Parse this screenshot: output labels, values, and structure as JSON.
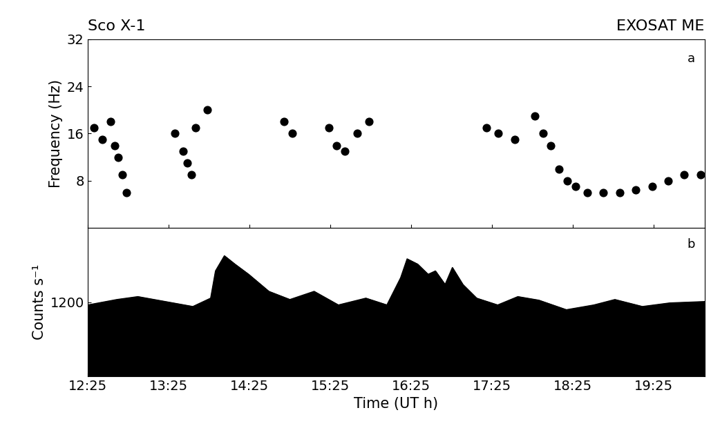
{
  "chart_data": [
    {
      "type": "scatter",
      "title": "Sco X-1",
      "subtitle": "EXOSAT ME",
      "y_label": "Frequency (Hz)",
      "annotations": [
        "a"
      ],
      "x": [
        12.5,
        12.6,
        12.7,
        12.75,
        12.8,
        12.85,
        12.9,
        13.5,
        13.6,
        13.65,
        13.7,
        13.75,
        13.9,
        14.85,
        14.95,
        15.4,
        15.5,
        15.6,
        15.75,
        15.9,
        17.35,
        17.5,
        17.7,
        17.95,
        18.05,
        18.15,
        18.25,
        18.35,
        18.45,
        18.6,
        18.8,
        19.0,
        19.2,
        19.4,
        19.6,
        19.8,
        20.0
      ],
      "values": [
        17,
        15,
        18,
        14,
        12,
        9,
        6,
        16,
        13,
        11,
        9,
        17,
        20,
        18,
        16,
        17,
        14,
        13,
        16,
        18,
        17,
        16,
        15,
        19,
        16,
        14,
        10,
        8,
        7,
        6,
        6,
        6,
        6.5,
        7,
        8,
        9,
        9
      ],
      "color": "#000000",
      "marker": "o",
      "xlim": [
        12.4167,
        20.05
      ],
      "xticks": [
        {
          "value": 12.4167,
          "label": "12:25"
        },
        {
          "value": 13.4167,
          "label": "13:25"
        },
        {
          "value": 14.4167,
          "label": "14:25"
        },
        {
          "value": 15.4167,
          "label": "15:25"
        },
        {
          "value": 16.4167,
          "label": "16:25"
        },
        {
          "value": 17.4167,
          "label": "17:25"
        },
        {
          "value": 18.4167,
          "label": "18:25"
        },
        {
          "value": 19.4167,
          "label": "19:25"
        }
      ],
      "ylim": [
        0,
        32
      ],
      "yticks": [
        8,
        16,
        24,
        32
      ],
      "tick_labels": "y"
    },
    {
      "type": "area",
      "x_label": "Time (UT h)",
      "y_label": "Counts s⁻¹",
      "annotations": [
        "b"
      ],
      "x": [
        12.42,
        12.78,
        13.04,
        13.38,
        13.72,
        13.94,
        14.0,
        14.11,
        14.24,
        14.41,
        14.66,
        14.92,
        15.22,
        15.52,
        15.86,
        16.12,
        16.29,
        16.37,
        16.5,
        16.63,
        16.72,
        16.84,
        16.93,
        17.06,
        17.23,
        17.49,
        17.74,
        18.0,
        18.34,
        18.68,
        18.94,
        19.28,
        19.62,
        20.05
      ],
      "values": [
        1155,
        1243,
        1290,
        1210,
        1130,
        1265,
        1705,
        1950,
        1815,
        1650,
        1375,
        1243,
        1375,
        1155,
        1265,
        1155,
        1595,
        1900,
        1815,
        1650,
        1705,
        1485,
        1760,
        1485,
        1265,
        1155,
        1290,
        1232,
        1078,
        1155,
        1243,
        1130,
        1188,
        1210
      ],
      "color": "#000000",
      "xlim": [
        12.4167,
        20.05
      ],
      "xticks": [
        {
          "value": 12.4167,
          "label": "12:25"
        },
        {
          "value": 13.4167,
          "label": "13:25"
        },
        {
          "value": 14.4167,
          "label": "14:25"
        },
        {
          "value": 15.4167,
          "label": "15:25"
        },
        {
          "value": 16.4167,
          "label": "16:25"
        },
        {
          "value": 17.4167,
          "label": "17:25"
        },
        {
          "value": 18.4167,
          "label": "18:25"
        },
        {
          "value": 19.4167,
          "label": "19:25"
        }
      ],
      "ylim": [
        0,
        2400
      ],
      "yticks": [
        1200
      ]
    }
  ]
}
